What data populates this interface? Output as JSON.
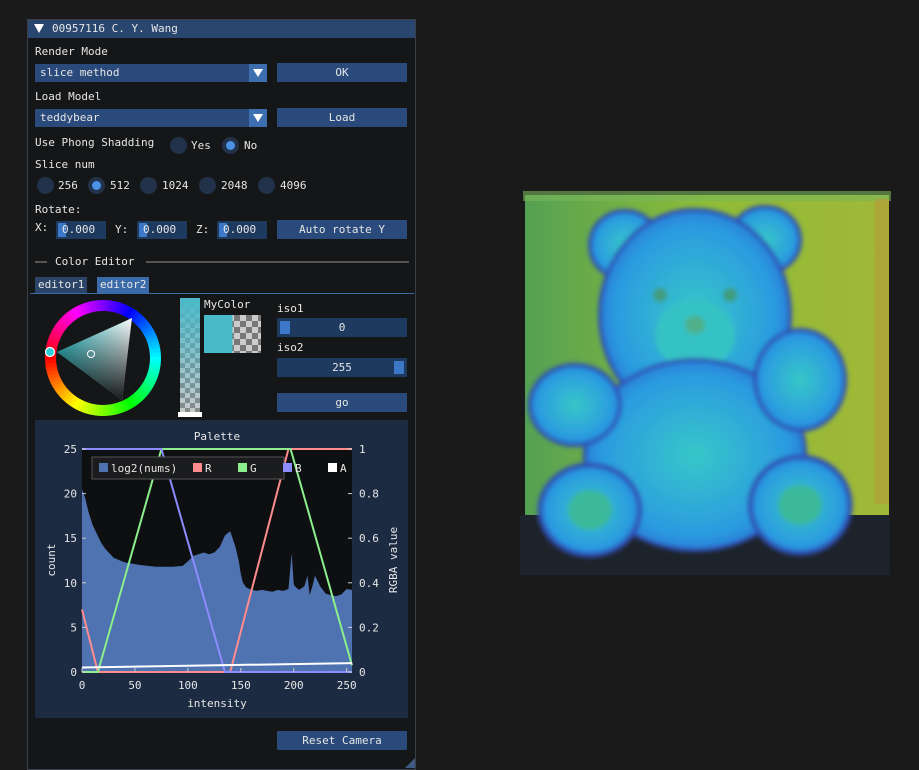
{
  "window": {
    "title": "00957116 C. Y. Wang"
  },
  "render_mode": {
    "label": "Render Mode",
    "value": "slice method",
    "ok_label": "OK"
  },
  "load_model": {
    "label": "Load Model",
    "value": "teddybear",
    "load_label": "Load"
  },
  "phong": {
    "label": "Use Phong Shadding",
    "options": [
      "Yes",
      "No"
    ],
    "selected": "No"
  },
  "slice_num": {
    "label": "Slice num",
    "options": [
      "256",
      "512",
      "1024",
      "2048",
      "4096"
    ],
    "selected": "512"
  },
  "rotate": {
    "label": "Rotate:",
    "x_label": "X:",
    "x": "0.000",
    "y_label": "Y:",
    "y": "0.000",
    "z_label": "Z:",
    "z": "0.000",
    "auto_label": "Auto rotate Y"
  },
  "color_editor": {
    "header": "Color Editor",
    "tabs": [
      "editor1",
      "editor2"
    ],
    "active_tab": "editor2",
    "mycolor_label": "MyColor",
    "mycolor_hex": "#4ab9c9",
    "iso1_label": "iso1",
    "iso1_value": "0",
    "iso2_label": "iso2",
    "iso2_value": "255",
    "go_label": "go"
  },
  "reset_camera_label": "Reset Camera",
  "colors": {
    "accent": "#4a93e8",
    "button": "#294a7a",
    "title_bar": "#29466f",
    "panel": "#151617"
  },
  "chart_data": {
    "type": "area",
    "title": "Palette",
    "xlabel": "intensity",
    "ylabel": "count",
    "y2label": "RGBA value",
    "xlim": [
      0,
      255
    ],
    "ylim": [
      0,
      25
    ],
    "y2lim": [
      0,
      1
    ],
    "xticks": [
      "0",
      "50",
      "100",
      "150",
      "200",
      "250"
    ],
    "yticks": [
      "0",
      "5",
      "10",
      "15",
      "20",
      "25"
    ],
    "y2ticks": [
      "0",
      "0.2",
      "0.4",
      "0.6",
      "0.8",
      "1"
    ],
    "legend": [
      "log2(nums)",
      "R",
      "G",
      "B",
      "A"
    ],
    "legend_position": "top-left",
    "histogram": {
      "name": "log2(nums)",
      "color": "#4f72b0",
      "x": [
        0,
        3,
        6,
        10,
        14,
        18,
        22,
        26,
        30,
        40,
        55,
        70,
        85,
        95,
        100,
        105,
        110,
        115,
        120,
        125,
        130,
        135,
        140,
        145,
        148,
        150,
        152,
        155,
        160,
        165,
        170,
        175,
        180,
        185,
        190,
        195,
        198,
        200,
        202,
        205,
        210,
        213,
        215,
        218,
        220,
        225,
        230,
        235,
        240,
        245,
        250,
        255
      ],
      "y": [
        20.5,
        19.5,
        18,
        16.5,
        15.5,
        14.5,
        13.8,
        13.3,
        12.8,
        12.3,
        12,
        11.8,
        11.8,
        11.9,
        12.4,
        13,
        13.2,
        13.4,
        13.2,
        13.4,
        14,
        15.3,
        15.8,
        14,
        12.5,
        11,
        10,
        9.5,
        9.2,
        9.1,
        9.2,
        9.1,
        9,
        9.2,
        9.1,
        9.3,
        13.3,
        9.8,
        9.5,
        9.2,
        9.6,
        10.8,
        8.6,
        9.8,
        10.8,
        9.6,
        8.8,
        8.6,
        8.5,
        8.7,
        9.3,
        9.2
      ]
    },
    "series": [
      {
        "name": "R",
        "color": "#ff8c8c",
        "x": [
          0,
          15,
          140,
          195,
          255
        ],
        "y": [
          0.28,
          0.0,
          0.0,
          1.0,
          1.0
        ]
      },
      {
        "name": "G",
        "color": "#8cef8c",
        "x": [
          0,
          15,
          75,
          197,
          255
        ],
        "y": [
          0.0,
          0.0,
          1.0,
          1.0,
          0.03
        ]
      },
      {
        "name": "B",
        "color": "#8c8cff",
        "x": [
          0,
          75,
          135,
          255
        ],
        "y": [
          1.0,
          1.0,
          0.0,
          0.0
        ]
      },
      {
        "name": "A",
        "color": "#ffffff",
        "x": [
          0,
          255
        ],
        "y": [
          0.02,
          0.04
        ]
      }
    ]
  }
}
